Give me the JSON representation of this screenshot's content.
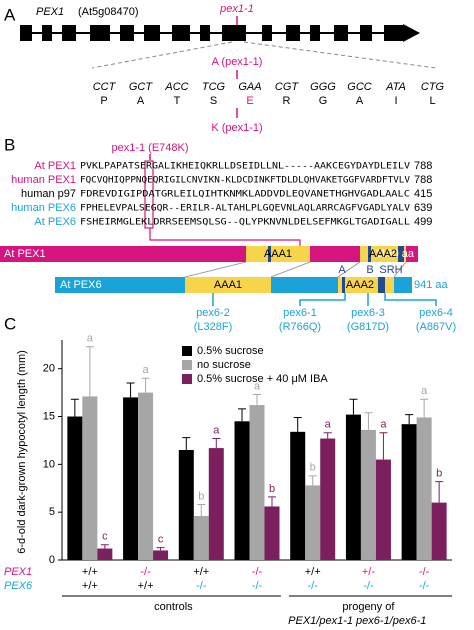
{
  "panel_a": {
    "label": "A",
    "gene": "PEX1",
    "locus": "(At5g08470)",
    "mutation": "pex1-1",
    "base_change": "A (pex1-1)",
    "codons": [
      "CCT",
      "GCT",
      "ACC",
      "TCG",
      "GAA",
      "CGT",
      "GGG",
      "GCC",
      "ATA",
      "CTG"
    ],
    "residues": [
      "P",
      "A",
      "T",
      "S",
      "E",
      "R",
      "G",
      "A",
      "I",
      "L"
    ],
    "residue_change": "K (pex1-1)"
  },
  "panel_b": {
    "label": "B",
    "mutation": "pex1-1 (E748K)",
    "alignment": [
      {
        "name": "At PEX1",
        "sequence": "PVKLPAPATSERGALIKHEIQKRLLDSEIDLLNL-----AAKCEGYDAYDLEILV",
        "end": 788
      },
      {
        "name": "human PEX1",
        "sequence": "FQCVQHIQPPNQEQRIGILCNVIKN-KLDCDINKFTDLDLQHVAKETGGFVARDFTVLV",
        "end": 788
      },
      {
        "name": "human p97",
        "sequence": "FDREVDIGIPDATGRLEILQIHTKNMKLADDVDLEQVANETHGHVGADLAALC",
        "end": 415
      },
      {
        "name": "human PEX6",
        "sequence": "FPHELEVPALSEGQR--ERILR-ALTAHLPLGQEVNLAQLARRCAGFVGADLYALV",
        "end": 639
      },
      {
        "name": "At PEX6",
        "sequence": "FSHEIRMGLEKLDRRSEEMSQLSG--QLYPKNVNLDELSEFMKGLTGADIGALL",
        "end": 499
      }
    ],
    "pex1_name": "At PEX1",
    "pex1_length": "1130 aa",
    "pex6_name": "At PEX6",
    "pex6_length": "941 aa",
    "aaa1": "AAA1",
    "aaa2": "AAA2",
    "motifs": [
      "A",
      "B",
      "SRH"
    ],
    "pex6_alleles": [
      "pex6-2",
      "pex6-1",
      "pex6-3",
      "pex6-4"
    ],
    "pex6_changes": [
      "(L328F)",
      "(R766Q)",
      "(G817D)",
      "(A867V)"
    ]
  },
  "chart_data": {
    "type": "bar",
    "panel_label": "C",
    "ylabel": "6-d-old dark-grown hypocotyl length (mm)",
    "row_labels": [
      "PEX1",
      "PEX6"
    ],
    "pex1_genotypes": [
      "+/+",
      "-/-",
      "+/+",
      "-/-",
      "+/+",
      "+/-",
      "-/-"
    ],
    "pex6_genotypes": [
      "+/+",
      "+/+",
      "-/-",
      "-/-",
      "-/-",
      "-/-",
      "-/-"
    ],
    "group_labels": [
      "controls",
      "progeny of",
      "PEX1/pex1-1 pex6-1/pex6-1"
    ],
    "series": [
      {
        "name": "0.5% sucrose",
        "color": "#000000",
        "values": [
          15,
          17,
          11.5,
          14.5,
          13.4,
          15.2,
          14.2
        ],
        "errors": [
          1.8,
          1.5,
          1.3,
          1.3,
          1.5,
          1.6,
          1.0
        ]
      },
      {
        "name": "no sucrose",
        "color": "#a6a6a6",
        "values": [
          17.1,
          17.5,
          4.6,
          16.2,
          7.8,
          13.6,
          14.9
        ],
        "errors": [
          5.2,
          1.5,
          1.2,
          1.1,
          1.0,
          1.8,
          1.9
        ],
        "letters": [
          "a",
          "a",
          "b",
          "a",
          "b",
          null,
          "a"
        ]
      },
      {
        "name": "0.5% sucrose + 40 μM IBA",
        "color": "#7b1f5e",
        "values": [
          1.2,
          1.0,
          11.7,
          5.6,
          12.7,
          10.5,
          6.0
        ],
        "errors": [
          0.4,
          0.3,
          1.0,
          1.0,
          0.6,
          2.8,
          2.2
        ],
        "letters": [
          "c",
          "c",
          "a",
          "b",
          "a",
          "a",
          "b"
        ]
      }
    ],
    "ylim": [
      0,
      23
    ],
    "yticks": [
      0,
      5,
      10,
      15,
      20
    ]
  }
}
